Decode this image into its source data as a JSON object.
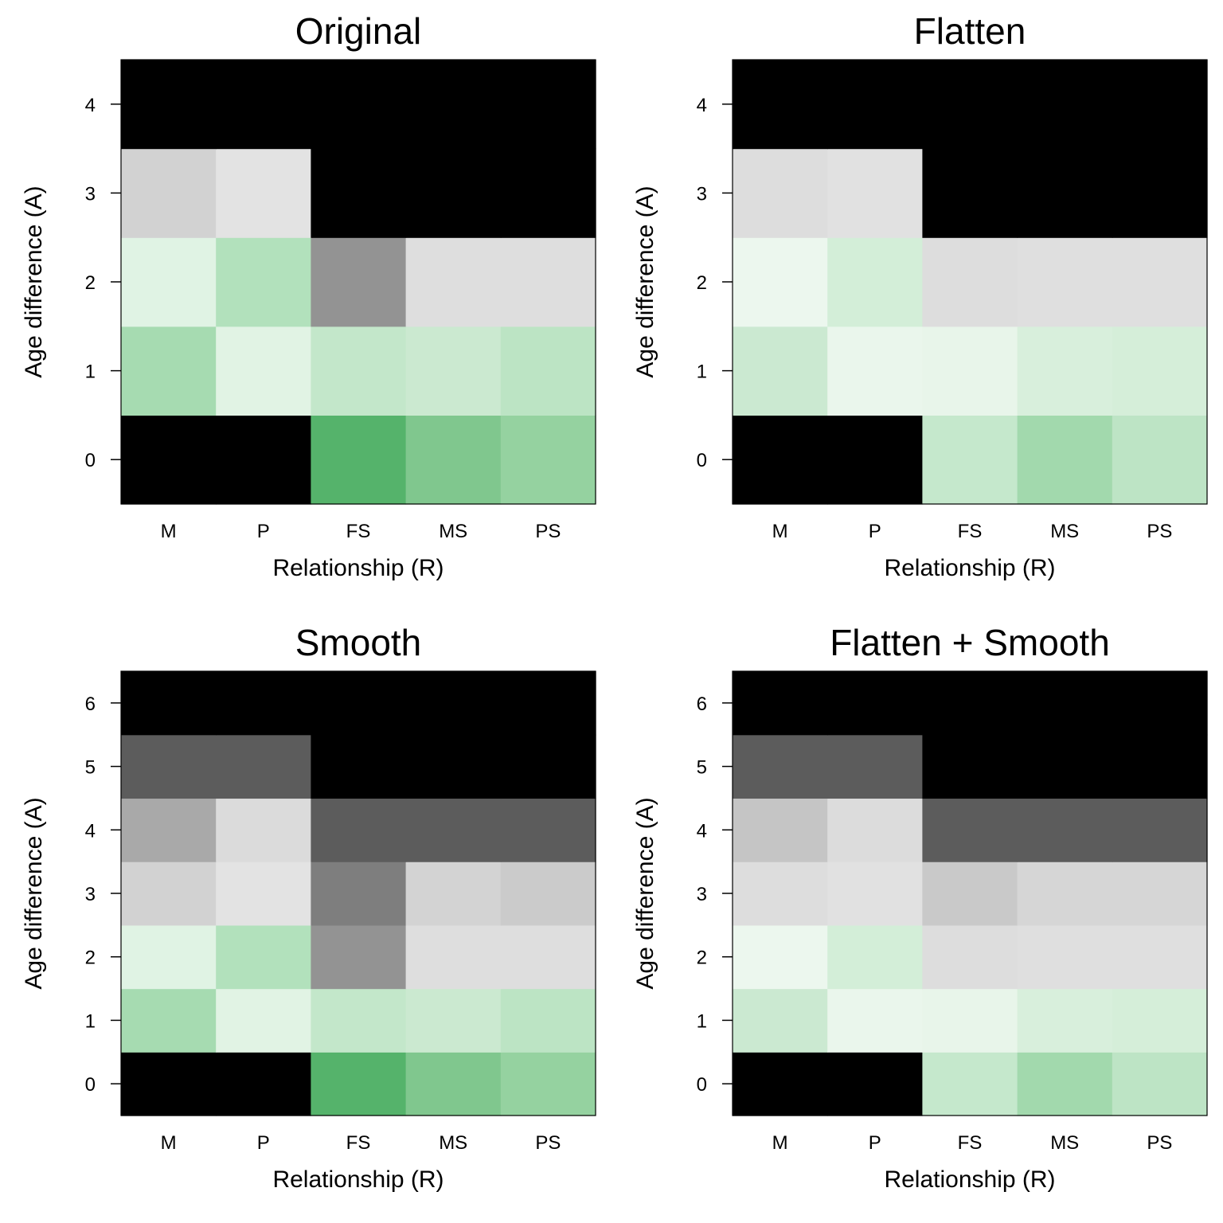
{
  "chart_data": [
    {
      "type": "heatmap",
      "title": "Original",
      "xlabel": "Relationship (R)",
      "ylabel": "Age difference (A)",
      "x_categories": [
        "M",
        "P",
        "FS",
        "MS",
        "PS"
      ],
      "y_categories": [
        "0",
        "1",
        "2",
        "3",
        "4"
      ],
      "cell_colors": [
        [
          "#000000",
          "#000000",
          "#55b36b",
          "#80c78e",
          "#95d2a0"
        ],
        [
          "#a6dbb1",
          "#e1f3e4",
          "#c3e7ca",
          "#cbe9d0",
          "#bce4c4"
        ],
        [
          "#e0f3e4",
          "#b2e1bc",
          "#939393",
          "#dedede",
          "#dedede"
        ],
        [
          "#d2d2d2",
          "#e3e3e3",
          "#000000",
          "#000000",
          "#000000"
        ],
        [
          "#000000",
          "#000000",
          "#000000",
          "#000000",
          "#000000"
        ]
      ]
    },
    {
      "type": "heatmap",
      "title": "Flatten",
      "xlabel": "Relationship (R)",
      "ylabel": "Age difference (A)",
      "x_categories": [
        "M",
        "P",
        "FS",
        "MS",
        "PS"
      ],
      "y_categories": [
        "0",
        "1",
        "2",
        "3",
        "4"
      ],
      "cell_colors": [
        [
          "#000000",
          "#000000",
          "#c5e8cc",
          "#a2d9ad",
          "#bde4c5"
        ],
        [
          "#cbe9d1",
          "#eaf6ec",
          "#e8f5ea",
          "#d8efdc",
          "#d5eed9"
        ],
        [
          "#ecf7ee",
          "#d3eed8",
          "#dddddd",
          "#dfdfdf",
          "#dfdfdf"
        ],
        [
          "#dddddd",
          "#e1e1e1",
          "#000000",
          "#000000",
          "#000000"
        ],
        [
          "#000000",
          "#000000",
          "#000000",
          "#000000",
          "#000000"
        ]
      ]
    },
    {
      "type": "heatmap",
      "title": "Smooth",
      "xlabel": "Relationship (R)",
      "ylabel": "Age difference (A)",
      "x_categories": [
        "M",
        "P",
        "FS",
        "MS",
        "PS"
      ],
      "y_categories": [
        "0",
        "1",
        "2",
        "3",
        "4",
        "5",
        "6"
      ],
      "cell_colors": [
        [
          "#000000",
          "#000000",
          "#55b36b",
          "#80c78e",
          "#95d2a0"
        ],
        [
          "#a6dbb1",
          "#e1f3e4",
          "#c3e7ca",
          "#cbe9d0",
          "#bce4c4"
        ],
        [
          "#e0f3e4",
          "#b2e1bc",
          "#939393",
          "#dedede",
          "#dedede"
        ],
        [
          "#d2d2d2",
          "#e3e3e3",
          "#7e7e7e",
          "#d3d3d3",
          "#cbcbcb"
        ],
        [
          "#a9a9a9",
          "#dbdbdb",
          "#5c5c5c",
          "#5c5c5c",
          "#5c5c5c"
        ],
        [
          "#5c5c5c",
          "#5c5c5c",
          "#000000",
          "#000000",
          "#000000"
        ],
        [
          "#000000",
          "#000000",
          "#000000",
          "#000000",
          "#000000"
        ]
      ]
    },
    {
      "type": "heatmap",
      "title": "Flatten + Smooth",
      "xlabel": "Relationship (R)",
      "ylabel": "Age difference (A)",
      "x_categories": [
        "M",
        "P",
        "FS",
        "MS",
        "PS"
      ],
      "y_categories": [
        "0",
        "1",
        "2",
        "3",
        "4",
        "5",
        "6"
      ],
      "cell_colors": [
        [
          "#000000",
          "#000000",
          "#c5e8cc",
          "#a2d9ad",
          "#bde4c5"
        ],
        [
          "#cbe9d1",
          "#eaf6ec",
          "#e8f5ea",
          "#d8efdc",
          "#d5eed9"
        ],
        [
          "#ecf7ee",
          "#d3eed8",
          "#dddddd",
          "#dfdfdf",
          "#dfdfdf"
        ],
        [
          "#dddddd",
          "#e1e1e1",
          "#c9c9c9",
          "#d6d6d6",
          "#d6d6d6"
        ],
        [
          "#c5c5c5",
          "#dcdcdc",
          "#5c5c5c",
          "#5c5c5c",
          "#5c5c5c"
        ],
        [
          "#5c5c5c",
          "#5c5c5c",
          "#000000",
          "#000000",
          "#000000"
        ],
        [
          "#000000",
          "#000000",
          "#000000",
          "#000000",
          "#000000"
        ]
      ]
    }
  ]
}
